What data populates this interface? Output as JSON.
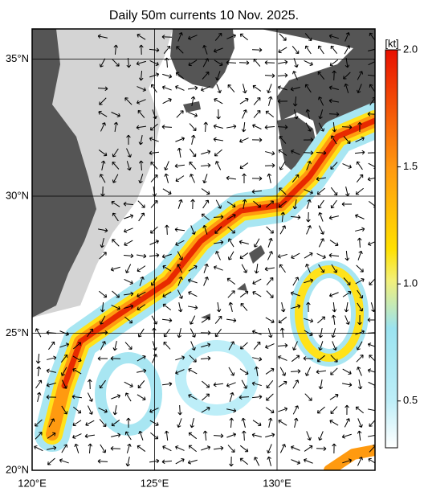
{
  "title": "Daily 50m currents 10 Nov. 2025.",
  "map": {
    "lonlim": [
      120,
      134
    ],
    "latlim": [
      20,
      36.1
    ],
    "lon_ticks": [
      {
        "value": 120,
        "label": "120°E"
      },
      {
        "value": 125,
        "label": "125°E"
      },
      {
        "value": 130,
        "label": "130°E"
      }
    ],
    "lat_ticks": [
      {
        "value": 20,
        "label": "20°N"
      },
      {
        "value": 25,
        "label": "25°N"
      },
      {
        "value": 30,
        "label": "30°N"
      },
      {
        "value": 35,
        "label": "35°N"
      }
    ]
  },
  "colorbar": {
    "unit": "[kt]",
    "range": [
      0.3,
      2.0
    ],
    "ticks": [
      0.5,
      {
        "value": 1,
        "label": "1.0"
      },
      1.5,
      {
        "value": 2,
        "label": "2.0"
      }
    ]
  }
}
